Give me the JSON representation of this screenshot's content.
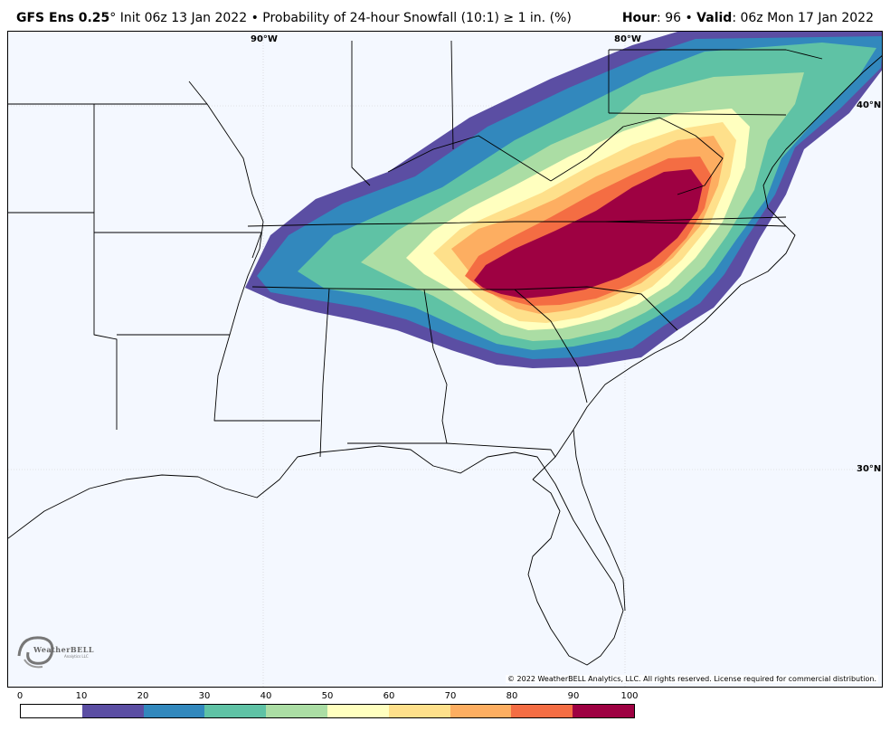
{
  "header": {
    "model": "GFS Ens 0.25",
    "degree": "°",
    "init": " Init 06z 13 Jan 2022 • Probability of 24-hour Snowfall (10:1) ≥ 1 in. (%)",
    "hour_label": "Hour",
    "hour_value": ": 96 • ",
    "valid_label": "Valid",
    "valid_value": ": 06z Mon 17 Jan 2022"
  },
  "grid_labels": {
    "lon_90": "90°W",
    "lon_80": "80°W",
    "lat_40": "40°N",
    "lat_30": "30°N"
  },
  "copyright": "© 2022 WeatherBELL Analytics, LLC. All rights reserved. License required for commercial distribution.",
  "logo": {
    "name": "WeatherBELL",
    "sub": "Analytics LLC",
    "icon": "swirl-logo-icon"
  },
  "legend": {
    "ticks": [
      "0",
      "10",
      "20",
      "30",
      "40",
      "50",
      "60",
      "70",
      "80",
      "90",
      "100"
    ],
    "colors": [
      "#ffffff",
      "#5b4ea3",
      "#3288bd",
      "#5fc2a5",
      "#abdda4",
      "#ffffbf",
      "#fee08b",
      "#fdae61",
      "#f46d43",
      "#9e0142"
    ]
  },
  "colors": {
    "map_bg": "#f4f8ff",
    "c10": "#5b4ea3",
    "c20": "#3288bd",
    "c30": "#5fc2a5",
    "c40": "#abdda4",
    "c50": "#ffffbf",
    "c60": "#fee08b",
    "c70": "#fdae61",
    "c80": "#f46d43",
    "c90": "#9e0142"
  }
}
